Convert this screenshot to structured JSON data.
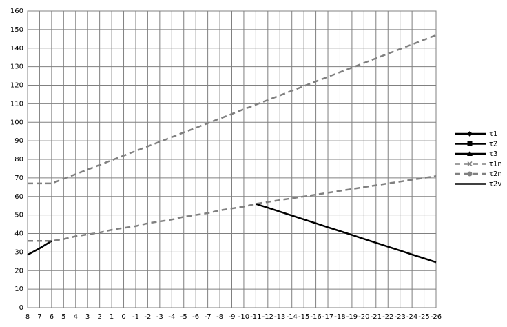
{
  "chart_data": {
    "type": "line",
    "categories": [
      "8",
      "7",
      "6",
      "5",
      "4",
      "3",
      "2",
      "1",
      "0",
      "-1",
      "-2",
      "-3",
      "-4",
      "-5",
      "-6",
      "-7",
      "-8",
      "-9",
      "-10",
      "-11",
      "-12",
      "-13",
      "-14",
      "-15",
      "-16",
      "-17",
      "-18",
      "-19",
      "-20",
      "-21",
      "-22",
      "-23",
      "-24",
      "-25",
      "-26"
    ],
    "ylim": [
      0,
      160
    ],
    "yticks": [
      0,
      10,
      20,
      30,
      40,
      50,
      60,
      70,
      80,
      90,
      100,
      110,
      120,
      130,
      140,
      150,
      160
    ],
    "grid": true,
    "legend": "right",
    "series": [
      {
        "name": "τ1",
        "color": "#000000",
        "dash": false,
        "marker": "diamond",
        "values": [
          28.5,
          32,
          36,
          null,
          null,
          null,
          null,
          null,
          null,
          null,
          null,
          null,
          null,
          null,
          null,
          null,
          null,
          null,
          null,
          null,
          null,
          null,
          null,
          null,
          null,
          null,
          null,
          null,
          null,
          null,
          null,
          null,
          null,
          null,
          null
        ]
      },
      {
        "name": "τ2",
        "color": "#000000",
        "dash": false,
        "marker": "square",
        "values": [
          null,
          null,
          null,
          null,
          null,
          null,
          null,
          null,
          null,
          null,
          null,
          null,
          null,
          null,
          null,
          null,
          null,
          null,
          null,
          null,
          null,
          null,
          null,
          null,
          null,
          null,
          null,
          null,
          null,
          null,
          null,
          null,
          null,
          null,
          null
        ]
      },
      {
        "name": "τ3",
        "color": "#000000",
        "dash": false,
        "marker": "triangle",
        "values": [
          null,
          null,
          null,
          null,
          null,
          null,
          null,
          null,
          null,
          null,
          null,
          null,
          null,
          null,
          null,
          null,
          null,
          null,
          null,
          null,
          null,
          null,
          null,
          null,
          null,
          null,
          null,
          null,
          null,
          null,
          null,
          null,
          null,
          null,
          null
        ]
      },
      {
        "name": "τ1n",
        "color": "#808080",
        "dash": true,
        "marker": "x",
        "values": [
          67,
          67,
          67,
          69.5,
          72,
          74.5,
          77,
          79.5,
          82,
          84.5,
          87,
          89.5,
          92,
          94.5,
          97,
          99.5,
          102,
          104.5,
          107,
          109.5,
          112,
          114.5,
          117,
          119.5,
          122,
          124.5,
          127,
          129.5,
          132,
          134.5,
          137,
          139.5,
          142,
          144.5,
          147
        ]
      },
      {
        "name": "τ2n",
        "color": "#808080",
        "dash": true,
        "marker": "circle",
        "values": [
          36,
          36,
          36,
          37,
          38.5,
          39.5,
          40.5,
          42,
          43,
          44,
          45.5,
          46.5,
          47.5,
          49,
          50,
          51,
          52.5,
          53.5,
          54.5,
          56,
          57,
          58,
          59,
          60,
          61,
          62,
          63,
          64,
          65,
          66,
          67,
          68,
          69,
          70,
          71
        ]
      },
      {
        "name": "τ2v",
        "color": "#000000",
        "dash": false,
        "marker": "none",
        "values": [
          null,
          null,
          null,
          null,
          null,
          null,
          null,
          null,
          null,
          null,
          null,
          null,
          null,
          null,
          null,
          null,
          null,
          null,
          null,
          56,
          53.9,
          51.8,
          49.7,
          47.6,
          45.5,
          43.4,
          41.3,
          39.2,
          37.1,
          35,
          32.9,
          30.8,
          28.7,
          26.6,
          24.5
        ]
      }
    ]
  }
}
